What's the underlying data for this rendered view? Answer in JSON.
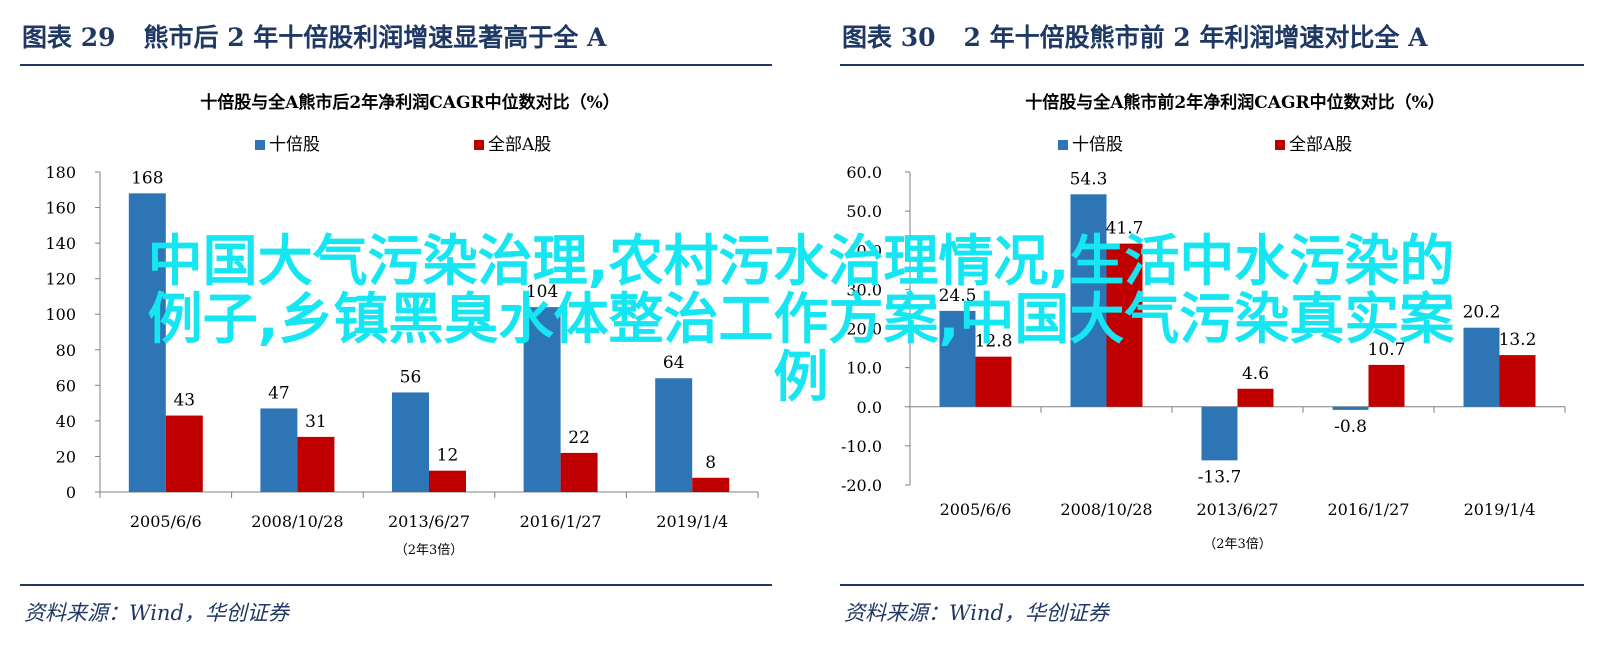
{
  "figures": [
    {
      "number": "图表 29",
      "title": "熊市后 2 年十倍股利润增速显著高于全 A",
      "source": "资料来源：Wind，华创证券"
    },
    {
      "number": "图表 30",
      "title": "2 年十倍股熊市前 2 年利润增速对比全 A",
      "source": "资料来源：Wind，华创证券"
    }
  ],
  "chart_data": [
    {
      "type": "bar",
      "title": "十倍股与全A熊市后2年净利润CAGR中位数对比（%）",
      "categories": [
        "2005/6/6",
        "2008/10/28",
        "2013/6/27",
        "2016/1/27",
        "2019/1/4"
      ],
      "note": "（2年3倍）",
      "ylim": [
        0,
        180
      ],
      "yticks": [
        0,
        20,
        40,
        60,
        80,
        100,
        120,
        140,
        160,
        180
      ],
      "ytick_labels": [
        "0",
        "20",
        "40",
        "60",
        "80",
        "100",
        "120",
        "140",
        "160",
        "180"
      ],
      "series": [
        {
          "name": "十倍股",
          "color": "#2e75b6",
          "values": [
            168,
            47,
            56,
            104,
            64
          ],
          "labels": [
            "168",
            "47",
            "56",
            "104",
            "64"
          ]
        },
        {
          "name": "全部A股",
          "color": "#c00000",
          "values": [
            43,
            31,
            12,
            22,
            8
          ],
          "labels": [
            "43",
            "31",
            "12",
            "22",
            "8"
          ]
        }
      ],
      "legend": "top-center",
      "grid": false
    },
    {
      "type": "bar",
      "title": "十倍股与全A熊市前2年净利润CAGR中位数对比（%）",
      "categories": [
        "2005/6/6",
        "2008/10/28",
        "2013/6/27",
        "2016/1/27",
        "2019/1/4"
      ],
      "note": "（2年3倍）",
      "ylim": [
        -20,
        60
      ],
      "yticks": [
        -20,
        -10,
        0,
        10,
        20,
        30,
        40,
        50,
        60
      ],
      "ytick_labels": [
        "-20.0",
        "-10.0",
        "0.0",
        "10.0",
        "20.0",
        "30.0",
        "40.0",
        "50.0",
        "60.0"
      ],
      "series": [
        {
          "name": "十倍股",
          "color": "#2e75b6",
          "values": [
            24.5,
            54.3,
            -13.7,
            -0.8,
            20.2
          ],
          "labels": [
            "24.5",
            "54.3",
            "-13.7",
            "-0.8",
            "20.2"
          ]
        },
        {
          "name": "全部A股",
          "color": "#c00000",
          "values": [
            12.8,
            41.7,
            4.6,
            10.7,
            13.2
          ],
          "labels": [
            "12.8",
            "41.7",
            "4.6",
            "10.7",
            "13.2"
          ]
        }
      ],
      "legend": "top-center",
      "grid": false
    }
  ],
  "overlay": {
    "lines": [
      "中国大气污染治理,农村污水治理情况,生活中水污染的",
      "例子,乡镇黑臭水体整治工作方案,中国大气污染真实案",
      "例"
    ]
  }
}
